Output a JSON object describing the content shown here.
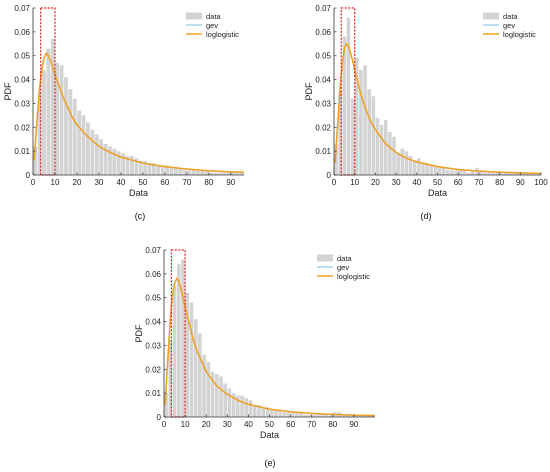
{
  "chart_data": [
    {
      "type": "histogram-with-fits",
      "panel_label": "(c)",
      "xlabel": "Data",
      "ylabel": "PDF",
      "xlim": [
        0,
        96
      ],
      "ylim": [
        0,
        0.07
      ],
      "xticks": [
        0,
        10,
        20,
        30,
        40,
        50,
        60,
        70,
        80,
        90
      ],
      "yticks": [
        0,
        0.01,
        0.02,
        0.03,
        0.04,
        0.05,
        0.06,
        0.07
      ],
      "ytick_labels": [
        "0",
        "0.01",
        "0.02",
        "0.03",
        "0.04",
        "0.05",
        "0.06",
        "0.07"
      ],
      "legend": [
        "data",
        "gev",
        "loglogistic"
      ],
      "legend_position": "top-right",
      "highlight_box": {
        "x0": 3.5,
        "x1": 10,
        "y0": 0,
        "y1": 0.07,
        "color": "#e02020"
      },
      "histogram": {
        "bin_edges_start": 0,
        "bin_width": 2,
        "density": [
          0.012,
          0.034,
          0.044,
          0.053,
          0.057,
          0.047,
          0.046,
          0.041,
          0.036,
          0.032,
          0.027,
          0.025,
          0.022,
          0.019,
          0.017,
          0.015,
          0.013,
          0.012,
          0.011,
          0.01,
          0.009,
          0.008,
          0.008,
          0.007,
          0.006,
          0.006,
          0.005,
          0.005,
          0.004,
          0.004,
          0.004,
          0.003,
          0.003,
          0.003,
          0.002,
          0.002,
          0.002,
          0.002,
          0.002,
          0.002,
          0.001,
          0.001,
          0.001,
          0.001,
          0.001,
          0.001,
          0.001,
          0.001
        ]
      },
      "fits": {
        "gev": {
          "x": [
            0.5,
            2,
            3,
            4,
            5,
            6,
            7,
            8,
            9,
            10,
            12,
            14,
            16,
            18,
            20,
            25,
            30,
            35,
            40,
            50,
            60,
            70,
            80,
            90,
            96
          ],
          "y": [
            0.007,
            0.026,
            0.037,
            0.045,
            0.049,
            0.051,
            0.05,
            0.048,
            0.045,
            0.042,
            0.037,
            0.032,
            0.028,
            0.024,
            0.021,
            0.016,
            0.012,
            0.0095,
            0.0075,
            0.005,
            0.0035,
            0.0025,
            0.0018,
            0.0013,
            0.0011
          ]
        },
        "loglogistic": {
          "x": [
            0.5,
            2,
            3,
            4,
            5,
            6,
            7,
            8,
            9,
            10,
            12,
            14,
            16,
            18,
            20,
            25,
            30,
            35,
            40,
            50,
            60,
            70,
            80,
            90,
            96
          ],
          "y": [
            0.006,
            0.025,
            0.036,
            0.044,
            0.049,
            0.051,
            0.05,
            0.048,
            0.045,
            0.042,
            0.037,
            0.032,
            0.028,
            0.024,
            0.021,
            0.016,
            0.012,
            0.0095,
            0.0075,
            0.005,
            0.0035,
            0.0025,
            0.0018,
            0.0013,
            0.0011
          ]
        }
      }
    },
    {
      "type": "histogram-with-fits",
      "panel_label": "(d)",
      "xlabel": "Data",
      "ylabel": "PDF",
      "xlim": [
        0,
        100
      ],
      "ylim": [
        0,
        0.07
      ],
      "xticks": [
        0,
        10,
        20,
        30,
        40,
        50,
        60,
        70,
        80,
        90,
        100
      ],
      "yticks": [
        0,
        0.01,
        0.02,
        0.03,
        0.04,
        0.05,
        0.06,
        0.07
      ],
      "ytick_labels": [
        "0",
        "0.01",
        "0.02",
        "0.03",
        "0.04",
        "0.05",
        "0.06",
        "0.07"
      ],
      "legend": [
        "data",
        "gev",
        "loglogistic"
      ],
      "legend_position": "top-right",
      "highlight_box": {
        "x0": 3.5,
        "x1": 10,
        "y0": 0,
        "y1": 0.07,
        "color": "#e02020"
      },
      "histogram": {
        "bin_edges_start": 0,
        "bin_width": 2,
        "density": [
          0.013,
          0.035,
          0.058,
          0.066,
          0.032,
          0.049,
          0.044,
          0.046,
          0.036,
          0.033,
          0.024,
          0.021,
          0.023,
          0.018,
          0.016,
          0.009,
          0.011,
          0.01,
          0.008,
          0.006,
          0.007,
          0.005,
          0.005,
          0.004,
          0.004,
          0.003,
          0.003,
          0.002,
          0.002,
          0.002,
          0.002,
          0.002,
          0.001,
          0.002,
          0.003,
          0.002,
          0.001,
          0.001,
          0.001,
          0.001,
          0.001,
          0.001,
          0.001,
          0.001,
          0.001,
          0.001,
          0.001,
          0.001,
          0.001,
          0.001
        ]
      },
      "fits": {
        "gev": {
          "x": [
            0.5,
            2,
            3,
            4,
            5,
            6,
            7,
            8,
            9,
            10,
            12,
            14,
            16,
            18,
            20,
            25,
            30,
            35,
            40,
            50,
            60,
            70,
            80,
            90,
            100
          ],
          "y": [
            0.006,
            0.025,
            0.038,
            0.047,
            0.053,
            0.055,
            0.054,
            0.051,
            0.048,
            0.044,
            0.037,
            0.031,
            0.026,
            0.022,
            0.019,
            0.013,
            0.0095,
            0.007,
            0.0055,
            0.0035,
            0.0023,
            0.0016,
            0.0012,
            0.0009,
            0.0007
          ]
        },
        "loglogistic": {
          "x": [
            0.5,
            2,
            3,
            4,
            5,
            6,
            7,
            8,
            9,
            10,
            12,
            14,
            16,
            18,
            20,
            25,
            30,
            35,
            40,
            50,
            60,
            70,
            80,
            90,
            100
          ],
          "y": [
            0.005,
            0.024,
            0.037,
            0.047,
            0.053,
            0.055,
            0.054,
            0.051,
            0.048,
            0.044,
            0.037,
            0.031,
            0.026,
            0.022,
            0.019,
            0.013,
            0.0095,
            0.007,
            0.0055,
            0.0035,
            0.0023,
            0.0016,
            0.0012,
            0.0009,
            0.0007
          ]
        }
      }
    },
    {
      "type": "histogram-with-fits",
      "panel_label": "(e)",
      "xlabel": "Data",
      "ylabel": "PDF",
      "xlim": [
        0,
        100
      ],
      "ylim": [
        0,
        0.07
      ],
      "xticks": [
        0,
        10,
        20,
        30,
        40,
        50,
        60,
        70,
        80,
        90
      ],
      "yticks": [
        0,
        0.01,
        0.02,
        0.03,
        0.04,
        0.05,
        0.06,
        0.07
      ],
      "ytick_labels": [
        "0",
        "0.01",
        "0.02",
        "0.03",
        "0.04",
        "0.05",
        "0.06",
        "0.07"
      ],
      "legend": [
        "data",
        "gev",
        "loglogistic"
      ],
      "legend_position": "top-right",
      "highlight_box": {
        "x0": 3.5,
        "x1": 10,
        "y0": 0,
        "y1": 0.07,
        "color": "#e02020"
      },
      "histogram": {
        "bin_edges_start": 0,
        "bin_width": 2,
        "density": [
          0.01,
          0.032,
          0.055,
          0.064,
          0.066,
          0.052,
          0.048,
          0.041,
          0.035,
          0.026,
          0.023,
          0.019,
          0.018,
          0.017,
          0.014,
          0.012,
          0.01,
          0.009,
          0.009,
          0.008,
          0.007,
          0.005,
          0.005,
          0.004,
          0.004,
          0.003,
          0.003,
          0.003,
          0.002,
          0.002,
          0.002,
          0.002,
          0.002,
          0.001,
          0.001,
          0.001,
          0.001,
          0.001,
          0.001,
          0.001,
          0.002,
          0.002,
          0.001,
          0.001,
          0.001,
          0.001,
          0.001,
          0.001,
          0.001,
          0.001
        ]
      },
      "fits": {
        "gev": {
          "x": [
            0.5,
            2,
            3,
            4,
            5,
            6,
            7,
            8,
            9,
            10,
            12,
            14,
            16,
            18,
            20,
            25,
            30,
            35,
            40,
            50,
            60,
            70,
            80,
            90,
            100
          ],
          "y": [
            0.006,
            0.028,
            0.042,
            0.051,
            0.056,
            0.058,
            0.057,
            0.054,
            0.05,
            0.046,
            0.039,
            0.032,
            0.027,
            0.023,
            0.019,
            0.013,
            0.0095,
            0.007,
            0.0053,
            0.0033,
            0.0022,
            0.0015,
            0.0011,
            0.0008,
            0.0006
          ]
        },
        "loglogistic": {
          "x": [
            0.5,
            2,
            3,
            4,
            5,
            6,
            7,
            8,
            9,
            10,
            12,
            14,
            16,
            18,
            20,
            25,
            30,
            35,
            40,
            50,
            60,
            70,
            80,
            90,
            100
          ],
          "y": [
            0.005,
            0.027,
            0.041,
            0.051,
            0.056,
            0.058,
            0.057,
            0.054,
            0.05,
            0.046,
            0.039,
            0.032,
            0.027,
            0.023,
            0.019,
            0.013,
            0.0095,
            0.007,
            0.0053,
            0.0033,
            0.0022,
            0.0015,
            0.0011,
            0.0008,
            0.0006
          ]
        }
      }
    }
  ],
  "colors": {
    "bar": "#d3d3d3",
    "gev": "#8ecae6",
    "loglogistic": "#f0a020",
    "highlight": "#e02020",
    "axis": "#333333"
  }
}
